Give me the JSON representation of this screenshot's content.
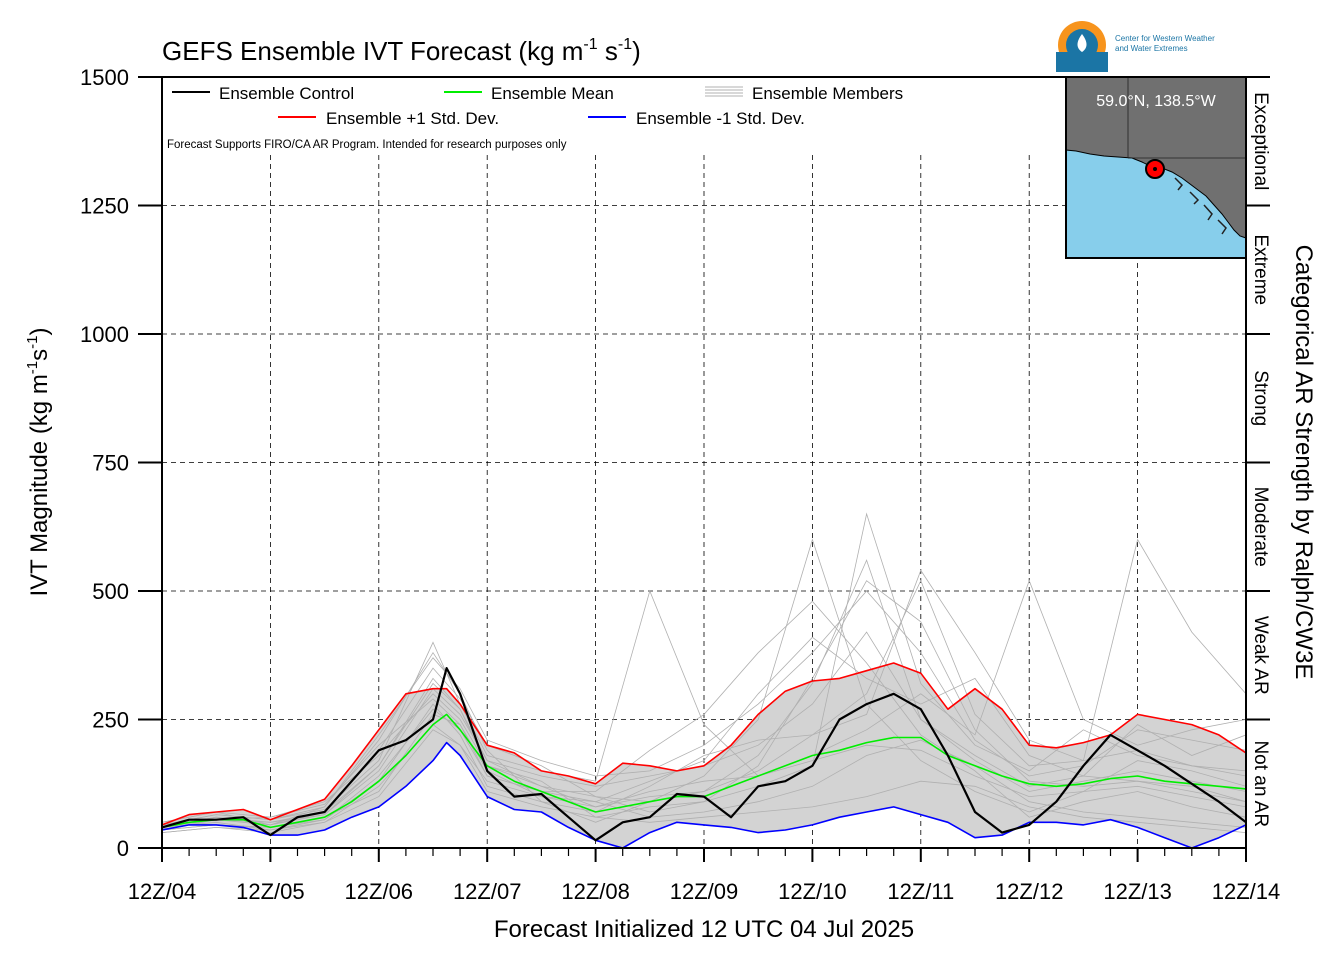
{
  "chart_data": {
    "type": "line",
    "title": "GEFS Ensemble IVT Forecast (kg m",
    "title_exp1": "-1",
    "title_mid": " s",
    "title_exp2": "-1",
    "title_end": ")",
    "ylabel": "IVT Magnitude (kg m",
    "ylabel_exp1": "-1",
    "ylabel_mid": "s",
    "ylabel_exp2": "-1",
    "ylabel_end": ")",
    "xlabel": "Forecast Initialized 12 UTC 04 Jul 2025",
    "right_axis_label": "Categorical AR Strength by Ralph/CW3E",
    "ylim": [
      0,
      1500
    ],
    "xlim": [
      0,
      240
    ],
    "grid": true,
    "y_ticks": [
      0,
      250,
      500,
      750,
      1000,
      1250,
      1500
    ],
    "x_ticks": [
      {
        "h": 0,
        "label": "12Z/04"
      },
      {
        "h": 24,
        "label": "12Z/05"
      },
      {
        "h": 48,
        "label": "12Z/06"
      },
      {
        "h": 72,
        "label": "12Z/07"
      },
      {
        "h": 96,
        "label": "12Z/08"
      },
      {
        "h": 120,
        "label": "12Z/09"
      },
      {
        "h": 144,
        "label": "12Z/10"
      },
      {
        "h": 168,
        "label": "12Z/11"
      },
      {
        "h": 192,
        "label": "12Z/12"
      },
      {
        "h": 216,
        "label": "12Z/13"
      },
      {
        "h": 240,
        "label": "12Z/14"
      }
    ],
    "categories": [
      {
        "label": "Not an AR",
        "from": 0,
        "to": 250
      },
      {
        "label": "Weak AR",
        "from": 250,
        "to": 500
      },
      {
        "label": "Moderate",
        "from": 500,
        "to": 750
      },
      {
        "label": "Strong",
        "from": 750,
        "to": 1000
      },
      {
        "label": "Extreme",
        "from": 1000,
        "to": 1250
      },
      {
        "label": "Exceptional",
        "from": 1250,
        "to": 1500
      }
    ],
    "legend": {
      "control": "Ensemble Control",
      "mean": "Ensemble Mean",
      "members": "Ensemble Members",
      "plus": "Ensemble +1 Std. Dev.",
      "minus": "Ensemble -1 Std. Dev.",
      "note": "Forecast Supports FIRO/CA AR Program. Intended for research purposes only"
    },
    "location": "59.0°N, 138.5°W",
    "logo_text": [
      "Center for Western Weather",
      "and Water Extremes"
    ],
    "colors": {
      "control": "#000000",
      "mean": "#00ee00",
      "plus": "#ff0000",
      "minus": "#0000ff",
      "members": "#b0b0b0",
      "spread_fill": "#d3d3d3",
      "map_land": "#707070",
      "map_ocean": "#87ceeb",
      "logo_orange": "#f7941d",
      "logo_blue": "#1b75a5"
    },
    "series": [
      {
        "name": "Ensemble Control",
        "key": "control",
        "x": [
          0,
          6,
          12,
          18,
          24,
          30,
          36,
          42,
          48,
          54,
          60,
          63,
          66,
          72,
          78,
          84,
          90,
          96,
          102,
          108,
          114,
          120,
          126,
          132,
          138,
          144,
          150,
          156,
          162,
          168,
          174,
          180,
          186,
          192,
          198,
          204,
          210,
          216,
          222,
          228,
          234,
          240
        ],
        "y": [
          40,
          55,
          55,
          60,
          25,
          60,
          70,
          130,
          190,
          210,
          250,
          350,
          300,
          150,
          100,
          105,
          60,
          15,
          50,
          60,
          105,
          100,
          60,
          120,
          130,
          160,
          250,
          280,
          300,
          270,
          180,
          70,
          30,
          45,
          90,
          160,
          220,
          190,
          160,
          125,
          90,
          50
        ]
      },
      {
        "name": "Ensemble Mean",
        "key": "mean",
        "x": [
          0,
          6,
          12,
          18,
          24,
          30,
          36,
          42,
          48,
          54,
          60,
          63,
          66,
          72,
          78,
          84,
          90,
          96,
          102,
          108,
          114,
          120,
          126,
          132,
          138,
          144,
          150,
          156,
          162,
          168,
          174,
          180,
          186,
          192,
          198,
          204,
          210,
          216,
          222,
          228,
          234,
          240
        ],
        "y": [
          40,
          50,
          55,
          55,
          40,
          50,
          60,
          90,
          130,
          180,
          240,
          260,
          230,
          160,
          130,
          110,
          90,
          70,
          80,
          90,
          100,
          100,
          120,
          140,
          160,
          180,
          190,
          205,
          215,
          215,
          180,
          160,
          140,
          125,
          120,
          125,
          135,
          140,
          130,
          125,
          120,
          115
        ]
      },
      {
        "name": "Ensemble +1 Std. Dev.",
        "key": "plus",
        "x": [
          0,
          6,
          12,
          18,
          24,
          30,
          36,
          42,
          48,
          54,
          60,
          63,
          66,
          72,
          78,
          84,
          90,
          96,
          102,
          108,
          114,
          120,
          126,
          132,
          138,
          144,
          150,
          156,
          162,
          168,
          174,
          180,
          186,
          192,
          198,
          204,
          210,
          216,
          222,
          228,
          234,
          240
        ],
        "y": [
          45,
          65,
          70,
          75,
          55,
          75,
          95,
          160,
          230,
          300,
          310,
          310,
          280,
          200,
          185,
          150,
          140,
          125,
          165,
          160,
          150,
          160,
          200,
          260,
          305,
          325,
          330,
          345,
          360,
          340,
          270,
          310,
          270,
          200,
          195,
          205,
          220,
          260,
          250,
          240,
          220,
          185
        ]
      },
      {
        "name": "Ensemble -1 Std. Dev.",
        "key": "minus",
        "x": [
          0,
          6,
          12,
          18,
          24,
          30,
          36,
          42,
          48,
          54,
          60,
          63,
          66,
          72,
          78,
          84,
          90,
          96,
          102,
          108,
          114,
          120,
          126,
          132,
          138,
          144,
          150,
          156,
          162,
          168,
          174,
          180,
          186,
          192,
          198,
          204,
          210,
          216,
          222,
          228,
          234,
          240
        ],
        "y": [
          35,
          45,
          45,
          40,
          25,
          25,
          35,
          60,
          80,
          120,
          170,
          205,
          180,
          100,
          75,
          70,
          40,
          15,
          0,
          30,
          50,
          45,
          40,
          30,
          35,
          45,
          60,
          70,
          80,
          65,
          50,
          20,
          25,
          50,
          50,
          45,
          55,
          40,
          20,
          0,
          20,
          45
        ]
      }
    ],
    "members": [
      {
        "x": [
          0,
          12,
          24,
          36,
          48,
          60,
          66,
          72,
          84,
          96,
          108,
          120,
          132,
          144,
          156,
          168,
          180,
          192,
          204,
          216,
          228,
          240
        ],
        "y": [
          40,
          60,
          50,
          70,
          160,
          330,
          270,
          170,
          120,
          80,
          100,
          110,
          180,
          320,
          560,
          250,
          180,
          120,
          140,
          240,
          180,
          220
        ]
      },
      {
        "x": [
          0,
          12,
          24,
          36,
          48,
          60,
          66,
          72,
          84,
          96,
          108,
          120,
          132,
          144,
          156,
          168,
          180,
          192,
          204,
          216,
          228,
          240
        ],
        "y": [
          50,
          70,
          45,
          80,
          210,
          380,
          300,
          190,
          90,
          50,
          90,
          140,
          250,
          600,
          280,
          170,
          110,
          70,
          110,
          170,
          150,
          120
        ]
      },
      {
        "x": [
          0,
          12,
          24,
          36,
          48,
          60,
          66,
          72,
          84,
          96,
          108,
          120,
          132,
          144,
          156,
          168,
          180,
          192,
          204,
          216,
          228,
          240
        ],
        "y": [
          35,
          45,
          40,
          60,
          110,
          260,
          240,
          140,
          110,
          110,
          190,
          260,
          380,
          480,
          360,
          220,
          150,
          60,
          90,
          110,
          80,
          60
        ]
      },
      {
        "x": [
          0,
          12,
          24,
          36,
          48,
          60,
          66,
          72,
          84,
          96,
          108,
          120,
          132,
          144,
          156,
          168,
          180,
          192,
          204,
          216,
          228,
          240
        ],
        "y": [
          45,
          55,
          60,
          90,
          180,
          300,
          250,
          160,
          130,
          60,
          80,
          90,
          120,
          160,
          650,
          320,
          200,
          150,
          230,
          180,
          160,
          140
        ]
      },
      {
        "x": [
          0,
          12,
          24,
          36,
          48,
          60,
          66,
          72,
          84,
          96,
          108,
          120,
          132,
          144,
          156,
          168,
          180,
          192,
          204,
          216,
          228,
          240
        ],
        "y": [
          40,
          50,
          35,
          55,
          130,
          280,
          220,
          120,
          90,
          70,
          120,
          180,
          210,
          220,
          260,
          540,
          380,
          210,
          170,
          600,
          420,
          300
        ]
      },
      {
        "x": [
          0,
          12,
          24,
          36,
          48,
          60,
          66,
          72,
          84,
          96,
          108,
          120,
          132,
          144,
          156,
          168,
          180,
          192,
          204,
          216,
          228,
          240
        ],
        "y": [
          30,
          40,
          30,
          50,
          120,
          240,
          200,
          130,
          100,
          90,
          60,
          70,
          90,
          120,
          180,
          210,
          160,
          90,
          70,
          60,
          50,
          40
        ]
      },
      {
        "x": [
          0,
          12,
          24,
          36,
          48,
          60,
          66,
          72,
          84,
          96,
          108,
          120,
          132,
          144,
          156,
          168,
          180,
          192,
          204,
          216,
          228,
          240
        ],
        "y": [
          45,
          65,
          55,
          75,
          170,
          400,
          280,
          180,
          150,
          130,
          500,
          240,
          140,
          180,
          230,
          300,
          220,
          520,
          250,
          200,
          230,
          250
        ]
      },
      {
        "x": [
          0,
          12,
          24,
          36,
          48,
          60,
          66,
          72,
          84,
          96,
          108,
          120,
          132,
          144,
          156,
          168,
          180,
          192,
          204,
          216,
          228,
          240
        ],
        "y": [
          35,
          55,
          50,
          65,
          150,
          310,
          260,
          170,
          140,
          120,
          140,
          160,
          200,
          280,
          420,
          250,
          170,
          110,
          130,
          150,
          130,
          110
        ]
      },
      {
        "x": [
          0,
          12,
          24,
          36,
          48,
          60,
          66,
          72,
          84,
          96,
          108,
          120,
          132,
          144,
          156,
          168,
          180,
          192,
          204,
          216,
          228,
          240
        ],
        "y": [
          40,
          60,
          45,
          70,
          190,
          350,
          290,
          200,
          160,
          100,
          70,
          90,
          160,
          330,
          520,
          440,
          230,
          130,
          120,
          130,
          120,
          90
        ]
      },
      {
        "x": [
          0,
          12,
          24,
          36,
          48,
          60,
          66,
          72,
          84,
          96,
          108,
          120,
          132,
          144,
          156,
          168,
          180,
          192,
          204,
          216,
          228,
          240
        ],
        "y": [
          50,
          70,
          60,
          85,
          200,
          290,
          240,
          150,
          100,
          80,
          110,
          130,
          140,
          170,
          200,
          190,
          140,
          100,
          110,
          120,
          100,
          80
        ]
      },
      {
        "x": [
          0,
          12,
          24,
          36,
          48,
          60,
          66,
          72,
          84,
          96,
          108,
          120,
          132,
          144,
          156,
          168,
          180,
          192,
          204,
          216,
          228,
          240
        ],
        "y": [
          35,
          45,
          40,
          55,
          140,
          270,
          230,
          140,
          110,
          90,
          130,
          170,
          300,
          410,
          330,
          280,
          330,
          180,
          140,
          130,
          110,
          90
        ]
      },
      {
        "x": [
          0,
          12,
          24,
          36,
          48,
          60,
          66,
          72,
          84,
          96,
          108,
          120,
          132,
          144,
          156,
          168,
          180,
          192,
          204,
          216,
          228,
          240
        ],
        "y": [
          45,
          65,
          55,
          80,
          220,
          370,
          310,
          210,
          170,
          140,
          150,
          200,
          280,
          380,
          500,
          380,
          210,
          140,
          160,
          230,
          210,
          190
        ]
      },
      {
        "x": [
          0,
          12,
          24,
          36,
          48,
          60,
          66,
          72,
          84,
          96,
          108,
          120,
          132,
          144,
          156,
          168,
          180,
          192,
          204,
          216,
          228,
          240
        ],
        "y": [
          30,
          40,
          35,
          50,
          100,
          230,
          200,
          110,
          80,
          60,
          50,
          60,
          70,
          80,
          100,
          130,
          120,
          80,
          60,
          50,
          40,
          30
        ]
      },
      {
        "x": [
          0,
          12,
          24,
          36,
          48,
          60,
          66,
          72,
          84,
          96,
          108,
          120,
          132,
          144,
          156,
          168,
          180,
          192,
          204,
          216,
          228,
          240
        ],
        "y": [
          40,
          55,
          45,
          65,
          160,
          320,
          270,
          160,
          120,
          100,
          90,
          110,
          150,
          220,
          300,
          520,
          260,
          160,
          170,
          190,
          160,
          150
        ]
      }
    ]
  }
}
